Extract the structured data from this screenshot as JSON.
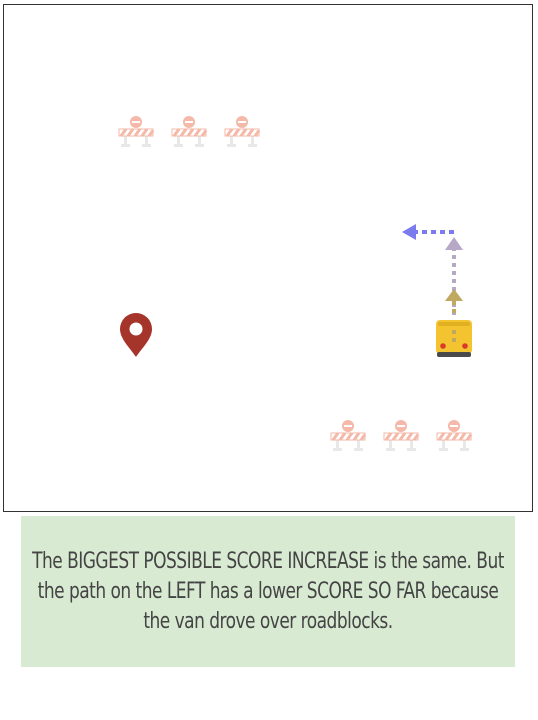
{
  "board": {
    "roadblocks": 6,
    "icons": {
      "roadblock": "roadblock-icon",
      "goal": "location-pin-icon",
      "van": "school-van-icon"
    },
    "colors": {
      "roadblock_stripe": "#f4b9a8",
      "roadblock_legs": "#e6e6e6",
      "pin": "#a5352a",
      "van": "#f4c430",
      "next_move_arrow": "#7b7bf0",
      "path_arrow": "#b8a8c8",
      "path_arrow_head": "#c0a860"
    }
  },
  "caption": {
    "text": "The BIGGEST POSSIBLE SCORE INCREASE is the same. But the path on the LEFT has a lower SCORE SO FAR because the van drove over roadblocks."
  }
}
